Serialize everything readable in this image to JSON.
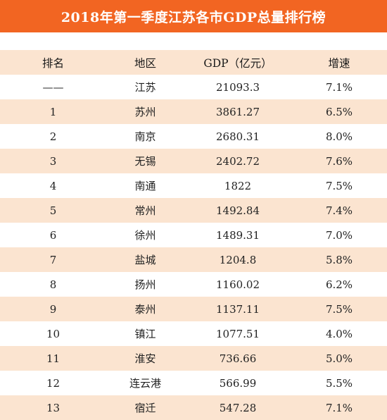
{
  "title": "2018年第一季度江苏各市GDP总量排行榜",
  "colors": {
    "title_bg": "#f26522",
    "row_tint": "#fbe4d0",
    "row_plain": "#ffffff"
  },
  "table": {
    "headers": [
      "排名",
      "地区",
      "GDP（亿元）",
      "增速"
    ],
    "rows": [
      [
        "——",
        "江苏",
        "21093.3",
        "7.1%"
      ],
      [
        "1",
        "苏州",
        "3861.27",
        "6.5%"
      ],
      [
        "2",
        "南京",
        "2680.31",
        "8.0%"
      ],
      [
        "3",
        "无锡",
        "2402.72",
        "7.6%"
      ],
      [
        "4",
        "南通",
        "1822",
        "7.5%"
      ],
      [
        "5",
        "常州",
        "1492.84",
        "7.4%"
      ],
      [
        "6",
        "徐州",
        "1489.31",
        "7.0%"
      ],
      [
        "7",
        "盐城",
        "1204.8",
        "5.8%"
      ],
      [
        "8",
        "扬州",
        "1160.02",
        "6.2%"
      ],
      [
        "9",
        "泰州",
        "1137.11",
        "7.5%"
      ],
      [
        "10",
        "镇江",
        "1077.51",
        "4.0%"
      ],
      [
        "11",
        "淮安",
        "736.66",
        "5.0%"
      ],
      [
        "12",
        "连云港",
        "566.99",
        "5.5%"
      ],
      [
        "13",
        "宿迁",
        "547.28",
        "7.1%"
      ]
    ]
  }
}
